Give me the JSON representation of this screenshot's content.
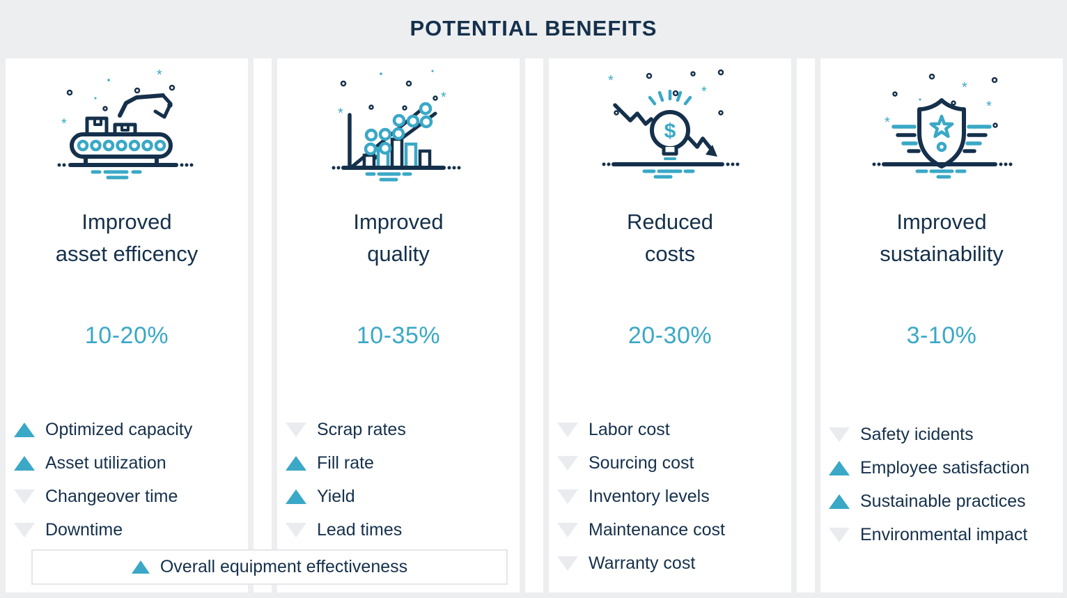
{
  "header": {
    "title": "POTENTIAL BENEFITS"
  },
  "colors": {
    "navy": "#15304B",
    "teal": "#3AA8C6",
    "down_arrow_gray": "#E9EBEE",
    "background": "#ECEEF0",
    "card": "#FFFFFF"
  },
  "columns": [
    {
      "id": "asset-efficiency",
      "icon": "conveyor-robot-icon",
      "title_lines": [
        "Improved",
        "asset efficency"
      ],
      "range": "10-20%",
      "items": [
        {
          "direction": "up",
          "label": "Optimized capacity"
        },
        {
          "direction": "up",
          "label": "Asset utilization"
        },
        {
          "direction": "down",
          "label": "Changeover time"
        },
        {
          "direction": "down",
          "label": "Downtime"
        }
      ]
    },
    {
      "id": "quality",
      "icon": "ascending-chart-icon",
      "title_lines": [
        "Improved",
        "quality"
      ],
      "range": "10-35%",
      "items": [
        {
          "direction": "down",
          "label": "Scrap rates"
        },
        {
          "direction": "up",
          "label": "Fill rate"
        },
        {
          "direction": "up",
          "label": "Yield"
        },
        {
          "direction": "down",
          "label": "Lead times"
        }
      ]
    },
    {
      "id": "costs",
      "icon": "bulb-dollar-decline-icon",
      "title_lines": [
        "Reduced",
        "costs"
      ],
      "range": "20-30%",
      "items": [
        {
          "direction": "down",
          "label": "Labor cost"
        },
        {
          "direction": "down",
          "label": "Sourcing cost"
        },
        {
          "direction": "down",
          "label": "Inventory levels"
        },
        {
          "direction": "down",
          "label": "Maintenance cost"
        },
        {
          "direction": "down",
          "label": "Warranty cost"
        }
      ]
    },
    {
      "id": "sustainability",
      "icon": "shield-star-icon",
      "title_lines": [
        "Improved",
        "sustainability"
      ],
      "range": "3-10%",
      "items": [
        {
          "direction": "down",
          "label": "Safety icidents"
        },
        {
          "direction": "up",
          "label": "Employee satisfaction"
        },
        {
          "direction": "up",
          "label": "Sustainable practices"
        },
        {
          "direction": "down",
          "label": "Environmental impact"
        }
      ]
    }
  ],
  "overall_note": {
    "direction": "up",
    "label": "Overall equipment effectiveness"
  }
}
